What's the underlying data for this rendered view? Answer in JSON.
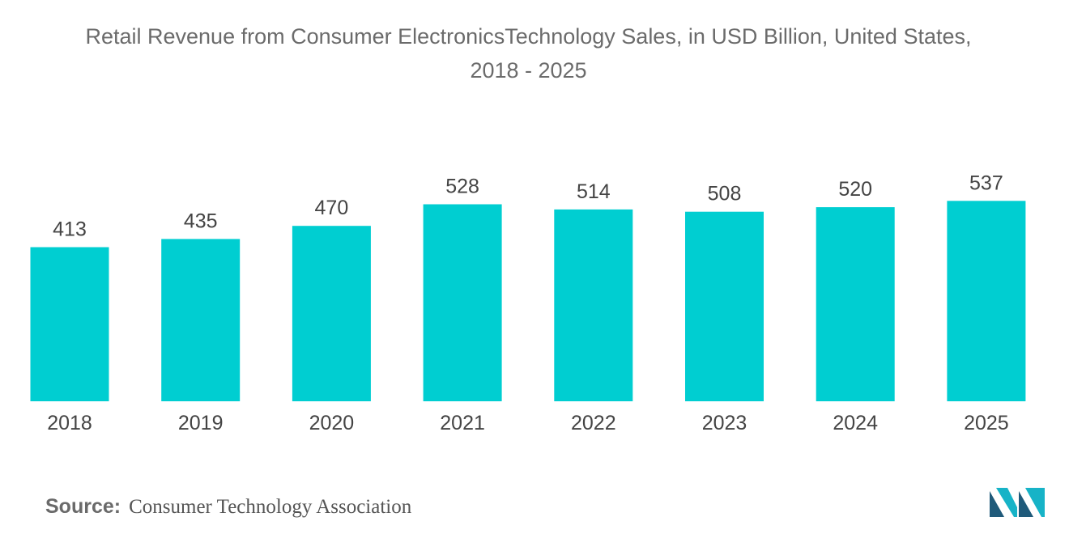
{
  "colors": {
    "bar": "#00CED1",
    "logo_dark": "#1F5A7A",
    "logo_light": "#17B3C7"
  },
  "chart_data": {
    "type": "bar",
    "title_lines": [
      "Retail Revenue from Consumer ElectronicsTechnology Sales, in USD Billion, United States,",
      "2018 - 2025"
    ],
    "categories": [
      "2018",
      "2019",
      "2020",
      "2021",
      "2022",
      "2023",
      "2024",
      "2025"
    ],
    "values": [
      413,
      435,
      470,
      528,
      514,
      508,
      520,
      537
    ],
    "xlabel": "",
    "ylabel": "",
    "ylim": [
      0,
      555
    ],
    "grid": false,
    "legend": "none"
  },
  "source": {
    "label": "Source:",
    "text": "Consumer Technology Association"
  },
  "logo": {
    "icon": "mordor-intelligence-logo-icon"
  }
}
